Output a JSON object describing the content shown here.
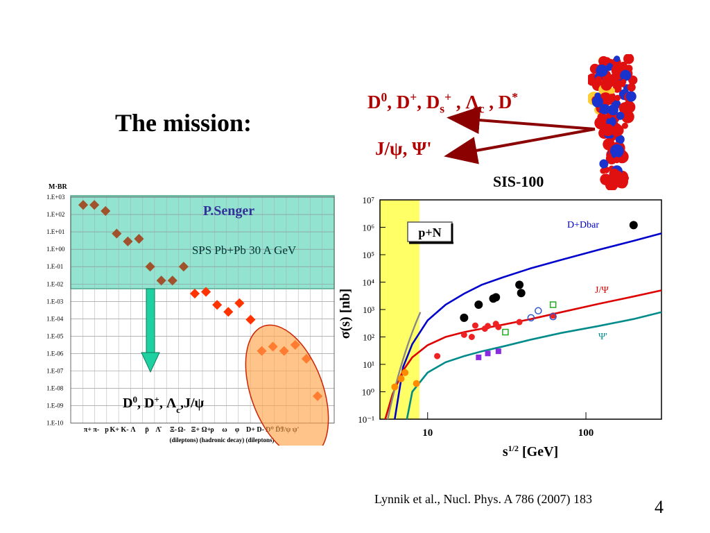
{
  "slide": {
    "title": "The mission:",
    "charm_label": "D⁰, D⁺, Dₛ⁺ , Λc , D*",
    "jpsi_label": "J/ψ, Ψ'",
    "sis_label": "SIS-100",
    "reference": "Lynnik et al., Nucl. Phys. A 786 (2007) 183",
    "page_number": "4",
    "colors": {
      "arrows": "#8b0000",
      "labels": "#b00000"
    }
  },
  "chart_data": [
    {
      "type": "scatter",
      "ylabel": "M·BR",
      "yscale": "log",
      "yticks": [
        "1.E+03",
        "1.E+02",
        "1.E+01",
        "1.E+00",
        "1.E-01",
        "1.E-02",
        "1.E-03",
        "1.E-04",
        "1.E-05",
        "1.E-06",
        "1.E-07",
        "1.E-08",
        "1.E-09",
        "1.E-10"
      ],
      "xtick_labels": [
        "π+ π-",
        "p",
        "K+ K-",
        "Λ",
        "p̄",
        "Λ̄",
        "Ξ-",
        "Ω-",
        "Ξ+ Ω+",
        "ρ",
        "ω",
        "φ",
        "D+ D-",
        "D⁰ D̄⁰",
        "J/ψ ψ'"
      ],
      "footnote": "(dileptons) (hadronic decay) (dileptons)",
      "box_title": "P.Senger",
      "box_subtitle": "SPS Pb+Pb 30 A GeV",
      "arrow_label": "D⁰, D⁺, Λc,J/ψ",
      "points": [
        {
          "log10": 2.55,
          "color": "#a0522d"
        },
        {
          "log10": 2.55,
          "color": "#a0522d"
        },
        {
          "log10": 2.2,
          "color": "#a0522d"
        },
        {
          "log10": 0.9,
          "color": "#a0522d"
        },
        {
          "log10": 0.45,
          "color": "#a0522d"
        },
        {
          "log10": 0.6,
          "color": "#a0522d"
        },
        {
          "log10": -1.0,
          "color": "#a0522d"
        },
        {
          "log10": -1.8,
          "color": "#a0522d"
        },
        {
          "log10": -1.8,
          "color": "#a0522d"
        },
        {
          "log10": -1.0,
          "color": "#a0522d"
        },
        {
          "log10": -2.55,
          "color": "#ff3300"
        },
        {
          "log10": -2.45,
          "color": "#ff3300"
        },
        {
          "log10": -3.2,
          "color": "#ff3300"
        },
        {
          "log10": -3.6,
          "color": "#ff3300"
        },
        {
          "log10": -3.1,
          "color": "#ff3300"
        },
        {
          "log10": -4.05,
          "color": "#ff3300"
        },
        {
          "log10": -5.85,
          "color": "#ff3300"
        },
        {
          "log10": -5.6,
          "color": "#ff3300"
        },
        {
          "log10": -5.85,
          "color": "#ff3300"
        },
        {
          "log10": -5.5,
          "color": "#ff3300"
        },
        {
          "log10": -6.3,
          "color": "#ff3300"
        },
        {
          "log10": -8.45,
          "color": "#ff3300"
        }
      ]
    },
    {
      "type": "line",
      "xscale": "log",
      "yscale": "log",
      "xlabel": "s¹ᐟ² [GeV]",
      "ylabel": "σ(s) [nb]",
      "xticks": [
        "10",
        "100"
      ],
      "yticks": [
        "10⁻¹",
        "10⁰",
        "10¹",
        "10²",
        "10³",
        "10⁴",
        "10⁵",
        "10⁶",
        "10⁷"
      ],
      "legend": "p+N",
      "series": [
        {
          "name": "D+Dbar",
          "color": "#0000cc",
          "x": [
            6.2,
            7,
            8,
            10,
            13,
            17,
            22,
            30,
            45,
            70,
            120,
            200,
            300
          ],
          "y": [
            0.1,
            8,
            55,
            400,
            1500,
            3800,
            8000,
            15000,
            32000,
            65000,
            150000,
            320000,
            600000
          ]
        },
        {
          "name": "J/Ψ",
          "color": "#dd0000",
          "x": [
            5.4,
            6,
            7,
            8,
            10,
            13,
            17,
            22,
            30,
            45,
            70,
            120,
            200,
            300
          ],
          "y": [
            0.1,
            0.8,
            6,
            18,
            50,
            100,
            150,
            200,
            280,
            450,
            800,
            1600,
            3000,
            5000
          ]
        },
        {
          "name": "Ψ'",
          "color": "#008b8b",
          "x": [
            7.4,
            8,
            10,
            13,
            17,
            22,
            30,
            45,
            70,
            120,
            200,
            300
          ],
          "y": [
            0.1,
            1,
            5,
            12,
            20,
            30,
            45,
            80,
            140,
            250,
            450,
            800
          ]
        }
      ]
    }
  ]
}
